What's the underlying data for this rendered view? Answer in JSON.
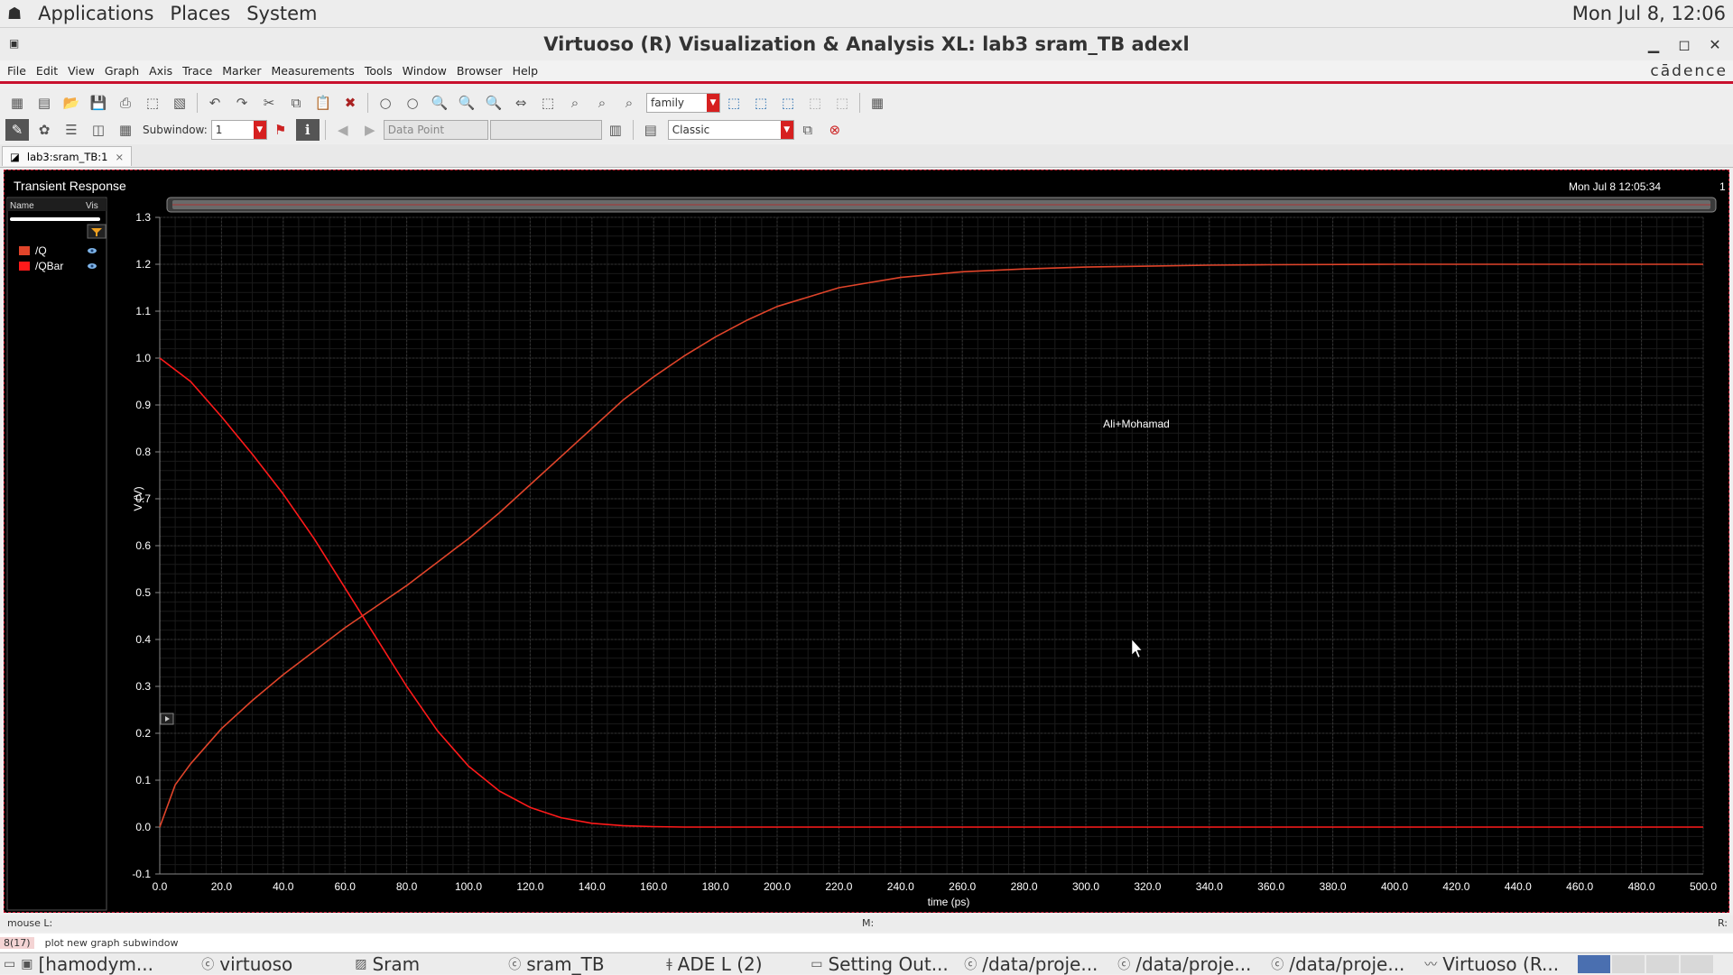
{
  "topbar": {
    "menu": [
      "Applications",
      "Places",
      "System"
    ],
    "clock": "Mon Jul  8, 12:06"
  },
  "window": {
    "title": "Virtuoso (R) Visualization & Analysis XL: lab3 sram_TB adexl"
  },
  "menubar": {
    "items": [
      "File",
      "Edit",
      "View",
      "Graph",
      "Axis",
      "Trace",
      "Marker",
      "Measurements",
      "Tools",
      "Window",
      "Browser",
      "Help"
    ],
    "brand": "cādence"
  },
  "toolbar1": {
    "family_combo": "family"
  },
  "toolbar2": {
    "subwindow_label": "Subwindow:",
    "subwindow_value": "1",
    "datapoint_combo": "Data Point",
    "style_combo": "Classic"
  },
  "tab": {
    "label": "lab3:sram_TB:1",
    "close": "×"
  },
  "plot": {
    "title": "Transient Response",
    "timestamp": "Mon Jul 8 12:05:34",
    "subwindow_number": "1",
    "annotation": "Ali+Mohamad",
    "legend_header": {
      "name": "Name",
      "vis": "Vis"
    }
  },
  "chart_data": {
    "type": "line",
    "title": "Transient Response",
    "xlabel": "time (ps)",
    "ylabel": "V (V)",
    "xlim": [
      0,
      500
    ],
    "ylim": [
      -0.1,
      1.3
    ],
    "x_ticks": [
      "0.0",
      "20.0",
      "40.0",
      "60.0",
      "80.0",
      "100.0",
      "120.0",
      "140.0",
      "160.0",
      "180.0",
      "200.0",
      "220.0",
      "240.0",
      "260.0",
      "280.0",
      "300.0",
      "320.0",
      "340.0",
      "360.0",
      "380.0",
      "400.0",
      "420.0",
      "440.0",
      "460.0",
      "480.0",
      "500.0"
    ],
    "y_ticks": [
      "-0.1",
      "0.0",
      "0.1",
      "0.2",
      "0.3",
      "0.4",
      "0.5",
      "0.6",
      "0.7",
      "0.8",
      "0.9",
      "1.0",
      "1.1",
      "1.2",
      "1.3"
    ],
    "grid": true,
    "series": [
      {
        "name": "/Q",
        "color": "#e0442a",
        "x": [
          0,
          5,
          10,
          20,
          30,
          40,
          50,
          60,
          70,
          80,
          90,
          100,
          110,
          120,
          130,
          140,
          150,
          160,
          170,
          180,
          190,
          200,
          220,
          240,
          260,
          280,
          300,
          320,
          340,
          360,
          400,
          450,
          500
        ],
        "y": [
          0.0,
          0.09,
          0.135,
          0.21,
          0.27,
          0.325,
          0.375,
          0.425,
          0.47,
          0.515,
          0.565,
          0.615,
          0.67,
          0.73,
          0.79,
          0.85,
          0.91,
          0.96,
          1.005,
          1.045,
          1.08,
          1.11,
          1.15,
          1.172,
          1.184,
          1.19,
          1.194,
          1.196,
          1.198,
          1.199,
          1.2,
          1.2,
          1.2
        ]
      },
      {
        "name": "/QBar",
        "color": "#ff1a1a",
        "x": [
          0,
          10,
          20,
          30,
          40,
          50,
          60,
          70,
          80,
          90,
          100,
          110,
          120,
          130,
          140,
          150,
          160,
          170,
          180,
          200,
          250,
          300,
          400,
          500
        ],
        "y": [
          1.0,
          0.95,
          0.875,
          0.795,
          0.71,
          0.615,
          0.51,
          0.405,
          0.3,
          0.205,
          0.13,
          0.077,
          0.042,
          0.02,
          0.008,
          0.003,
          0.001,
          0.0,
          0.0,
          0.0,
          0.0,
          0.0,
          0.0,
          0.0
        ]
      }
    ]
  },
  "statusbar": {
    "left": "mouse L:",
    "middle": "M:",
    "right": "R:"
  },
  "cmdbar": {
    "prompt": "8(17)",
    "message": "plot new graph subwindow"
  },
  "taskbar": {
    "items": [
      "[hamodym...",
      "virtuoso",
      "Sram",
      "sram_TB",
      "ADE L (2)",
      "Setting Out...",
      "/data/proje...",
      "/data/proje...",
      "/data/proje...",
      "Virtuoso (R..."
    ]
  }
}
